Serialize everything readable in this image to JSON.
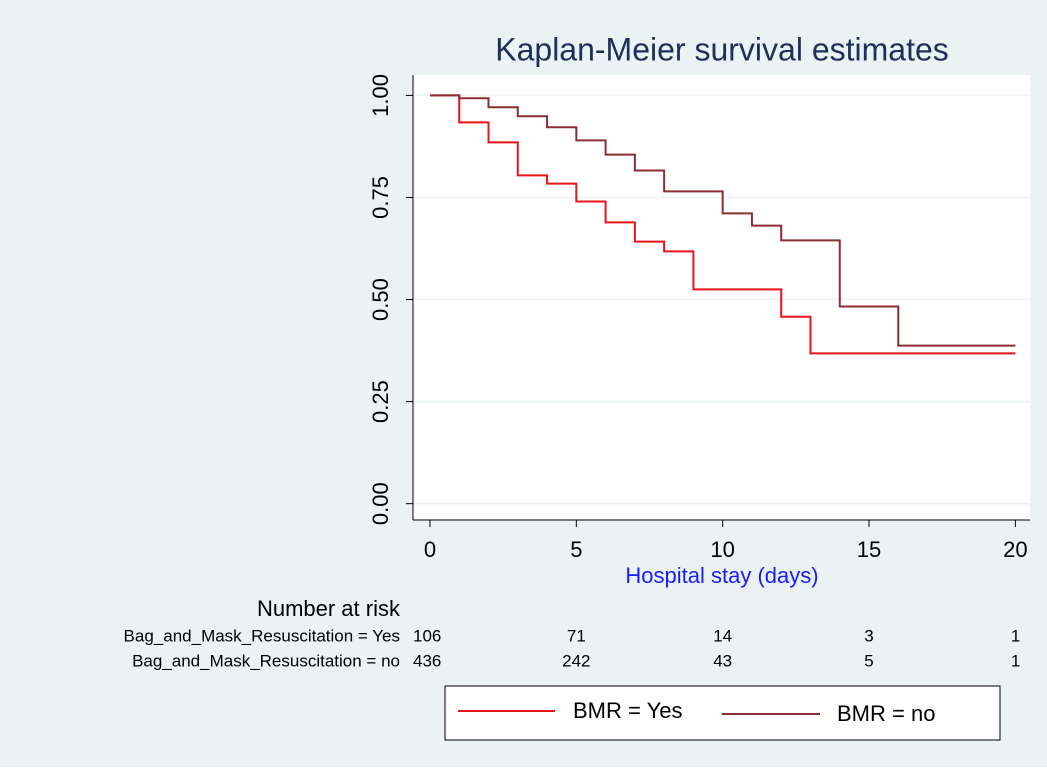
{
  "chart_data": {
    "type": "step",
    "title": "Kaplan-Meier survival estimates",
    "x_label": "Hospital stay (days)",
    "x": [
      0,
      1,
      2,
      3,
      4,
      5,
      6,
      7,
      8,
      9,
      10,
      11,
      12,
      13,
      14,
      15,
      16,
      17,
      18,
      19,
      20
    ],
    "series": [
      {
        "name": "BMR = Yes",
        "color": "#e8141c",
        "values": [
          1,
          0.934,
          0.885,
          0.804,
          0.784,
          0.74,
          0.689,
          0.642,
          0.618,
          0.525,
          0.525,
          0.525,
          0.458,
          0.368,
          0.368,
          0.368,
          0.368,
          0.368,
          0.368,
          0.368,
          0.368
        ]
      },
      {
        "name": "BMR = no",
        "color": "#8b2e32",
        "values": [
          1,
          0.993,
          0.971,
          0.949,
          0.922,
          0.89,
          0.855,
          0.816,
          0.765,
          0.765,
          0.711,
          0.681,
          0.645,
          0.645,
          0.483,
          0.483,
          0.387,
          0.387,
          0.387,
          0.387,
          0.387
        ]
      }
    ],
    "xlim": [
      -0.58,
      20.5
    ],
    "xticks": [
      0,
      5,
      10,
      15,
      20
    ],
    "ylim": [
      -0.04,
      1.05
    ],
    "yticks": [
      {
        "value": 0,
        "label": "0.00"
      },
      {
        "value": 0.25,
        "label": "0.25"
      },
      {
        "value": 0.5,
        "label": "0.50"
      },
      {
        "value": 0.75,
        "label": "0.75"
      },
      {
        "value": 1,
        "label": "1.00"
      }
    ],
    "grid": true,
    "risk_table": {
      "title": "Number at risk",
      "x": [
        0,
        5,
        10,
        15,
        20
      ],
      "rows": [
        {
          "label": "Bag_and_Mask_Resuscitation = Yes",
          "values": [
            106,
            71,
            14,
            3,
            1
          ]
        },
        {
          "label": "Bag_and_Mask_Resuscitation = no",
          "values": [
            436,
            242,
            43,
            5,
            1
          ]
        }
      ]
    }
  }
}
